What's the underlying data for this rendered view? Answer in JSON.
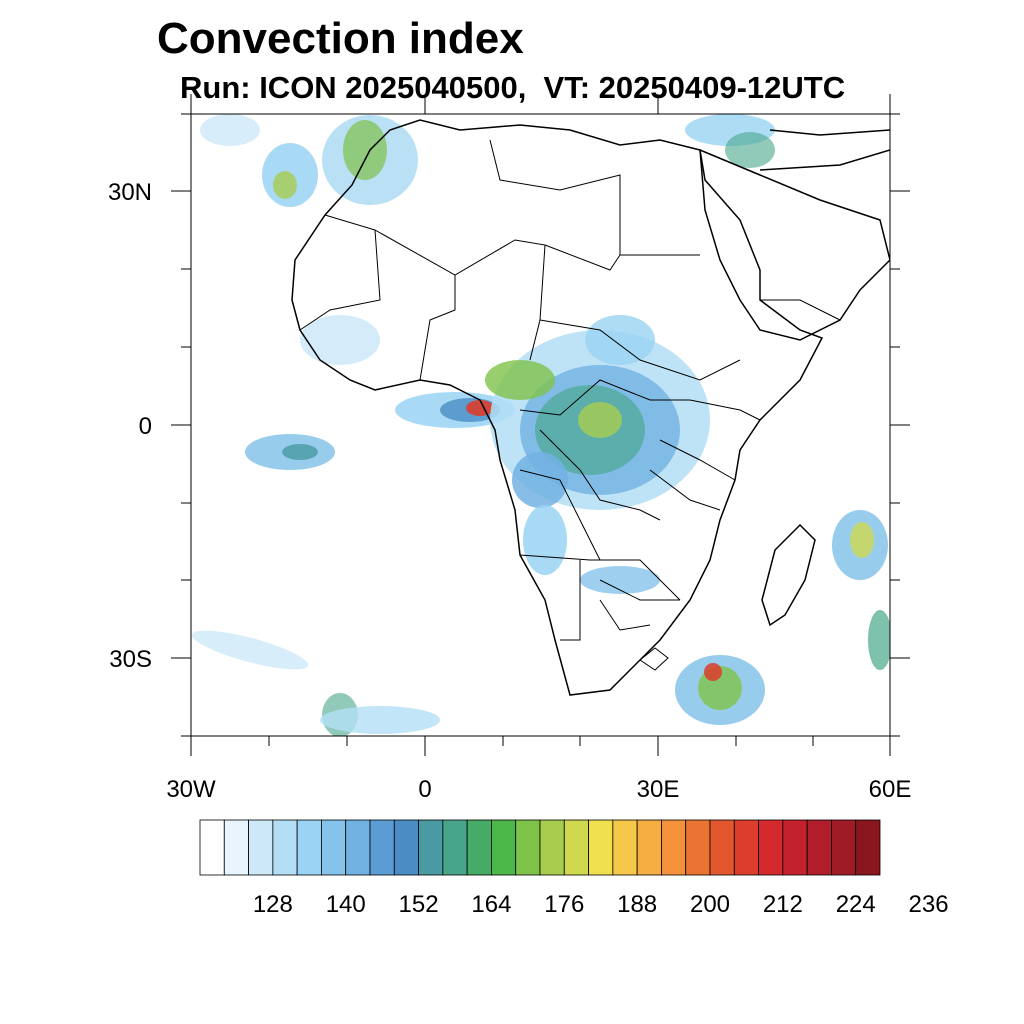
{
  "header": {
    "title": "Convection index",
    "subtitle": "Run: ICON 2025040500,  VT: 20250409-12UTC"
  },
  "map": {
    "lat_labels": [
      "30N",
      "0",
      "30S"
    ],
    "lon_labels": [
      "30W",
      "0",
      "30E",
      "60E"
    ]
  },
  "colorbar": {
    "tick_labels": [
      "128",
      "140",
      "152",
      "164",
      "176",
      "188",
      "200",
      "212",
      "224",
      "236"
    ],
    "colors": [
      "#ffffff",
      "#e9f5fc",
      "#cde9f8",
      "#b3def6",
      "#9ad3f3",
      "#86c3ea",
      "#72b2e2",
      "#5b9cd5",
      "#4a8cc4",
      "#4a9aa4",
      "#47a68a",
      "#45ab66",
      "#4db84a",
      "#7fc24a",
      "#a8cc4d",
      "#d0d84f",
      "#f0e050",
      "#f6c84a",
      "#f6ad42",
      "#f3923a",
      "#ec7433",
      "#e4572e",
      "#dc3d2c",
      "#d42a2d",
      "#c4212e",
      "#b11d2a",
      "#9f1b26",
      "#8b1620"
    ]
  }
}
